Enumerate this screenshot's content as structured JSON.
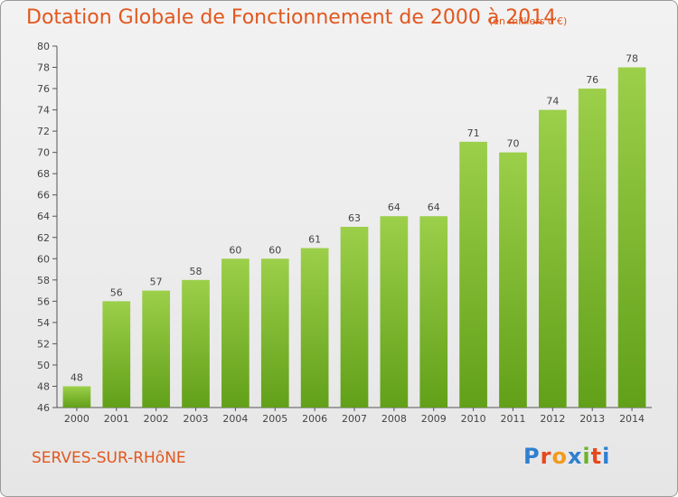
{
  "chart_data": {
    "type": "bar",
    "title": "Dotation Globale de Fonctionnement de 2000 à 2014",
    "subtitle": "(en milliers d'€)",
    "categories": [
      "2000",
      "2001",
      "2002",
      "2003",
      "2004",
      "2005",
      "2006",
      "2007",
      "2008",
      "2009",
      "2010",
      "2011",
      "2012",
      "2013",
      "2014"
    ],
    "values": [
      48,
      56,
      57,
      58,
      60,
      60,
      61,
      63,
      64,
      64,
      71,
      70,
      74,
      76,
      78
    ],
    "ylim": [
      46,
      80
    ],
    "ytick_step": 2,
    "grid": false,
    "xlabel": "",
    "ylabel": "",
    "bar_color_top": "#9ccf4a",
    "bar_color_bottom": "#62a019",
    "title_color": "#e2571e"
  },
  "footer": {
    "commune": "SERVES-SUR-RHôNE",
    "logo_letters": [
      "P",
      "r",
      "o",
      "x",
      "i",
      "t",
      "i"
    ],
    "logo_colors": [
      "#2f7fd1",
      "#e8481e",
      "#f29a1d",
      "#2f7fd1",
      "#6cb22c",
      "#e8481e",
      "#2f7fd1"
    ]
  }
}
